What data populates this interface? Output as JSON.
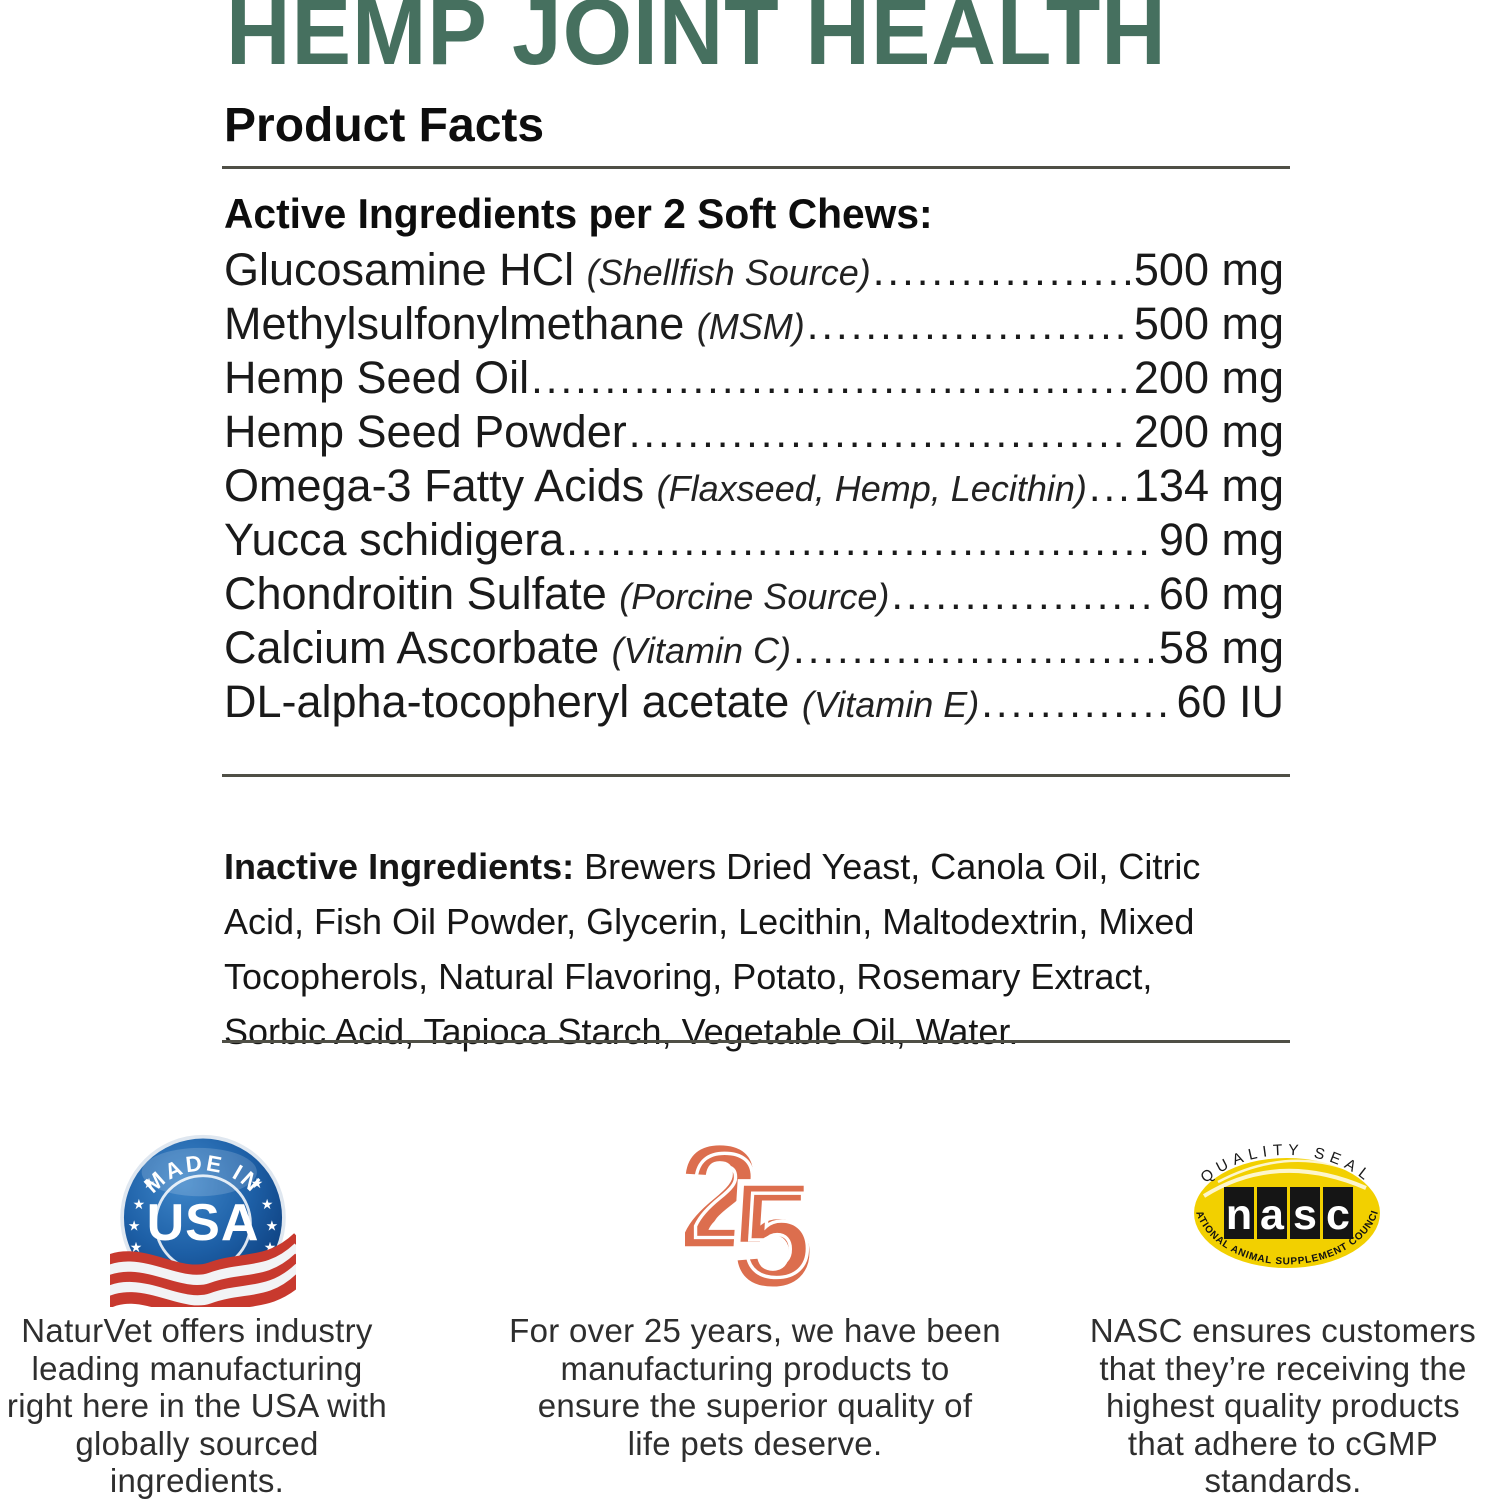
{
  "title": "HEMP JOINT HEALTH",
  "product_facts_heading": "Product Facts",
  "active_ingredients": {
    "heading": "Active Ingredients per 2 Soft Chews:",
    "rows": [
      {
        "name": "Glucosamine HCl",
        "note": "(Shellfish Source)",
        "amount": "500 mg"
      },
      {
        "name": "Methylsulfonylmethane",
        "note": "(MSM)",
        "amount": "500 mg"
      },
      {
        "name": "Hemp Seed Oil",
        "note": "",
        "amount": "200 mg"
      },
      {
        "name": "Hemp Seed Powder",
        "note": "",
        "amount": "200 mg"
      },
      {
        "name": "Omega-3 Fatty Acids",
        "note": "(Flaxseed, Hemp, Lecithin)",
        "amount": "134 mg"
      },
      {
        "name": "Yucca schidigera",
        "note": "",
        "amount": "90 mg"
      },
      {
        "name": "Chondroitin Sulfate",
        "note": "(Porcine Source)",
        "amount": "60 mg"
      },
      {
        "name": "Calcium Ascorbate",
        "note": "(Vitamin C)",
        "amount": "58 mg"
      },
      {
        "name": "DL-alpha-tocopheryl acetate",
        "note": "(Vitamin E)",
        "amount": "60 IU"
      }
    ]
  },
  "inactive_ingredients": {
    "label": "Inactive Ingredients:",
    "text": "Brewers Dried Yeast, Canola Oil, Citric Acid, Fish Oil Powder, Glycerin, Lecithin, Maltodextrin, Mixed Tocopherols, Natural Flavoring, Potato, Rosemary Extract, Sorbic Acid, Tapioca Starch, Vegetable Oil, Water."
  },
  "badges": {
    "made_in_usa": {
      "arc_text": "MADE IN",
      "center_text": "USA",
      "caption": "NaturVet offers industry\nleading manufacturing\nright here in the USA with\nglobally sourced\ningredients."
    },
    "anniversary": {
      "number": "25",
      "caption": "For over 25 years, we have been\nmanufacturing products to\nensure the superior quality of\nlife pets deserve."
    },
    "nasc": {
      "top_arc": "QUALITY SEAL",
      "letters": "nasc",
      "bottom_arc": "NATIONAL ANIMAL SUPPLEMENT COUNCIL",
      "caption": "NASC ensures customers\nthat they’re receiving the\nhighest quality products\nthat adhere to cGMP\nstandards."
    }
  },
  "icons": {
    "star": "★"
  },
  "colors": {
    "title_green": "#46705f",
    "logo_orange": "#dc6e4e",
    "nasc_yellow": "#f2d000",
    "usa_blue": "#1d5fa6",
    "flag_red": "#c8392e",
    "rule_gray": "#4f4f46"
  }
}
